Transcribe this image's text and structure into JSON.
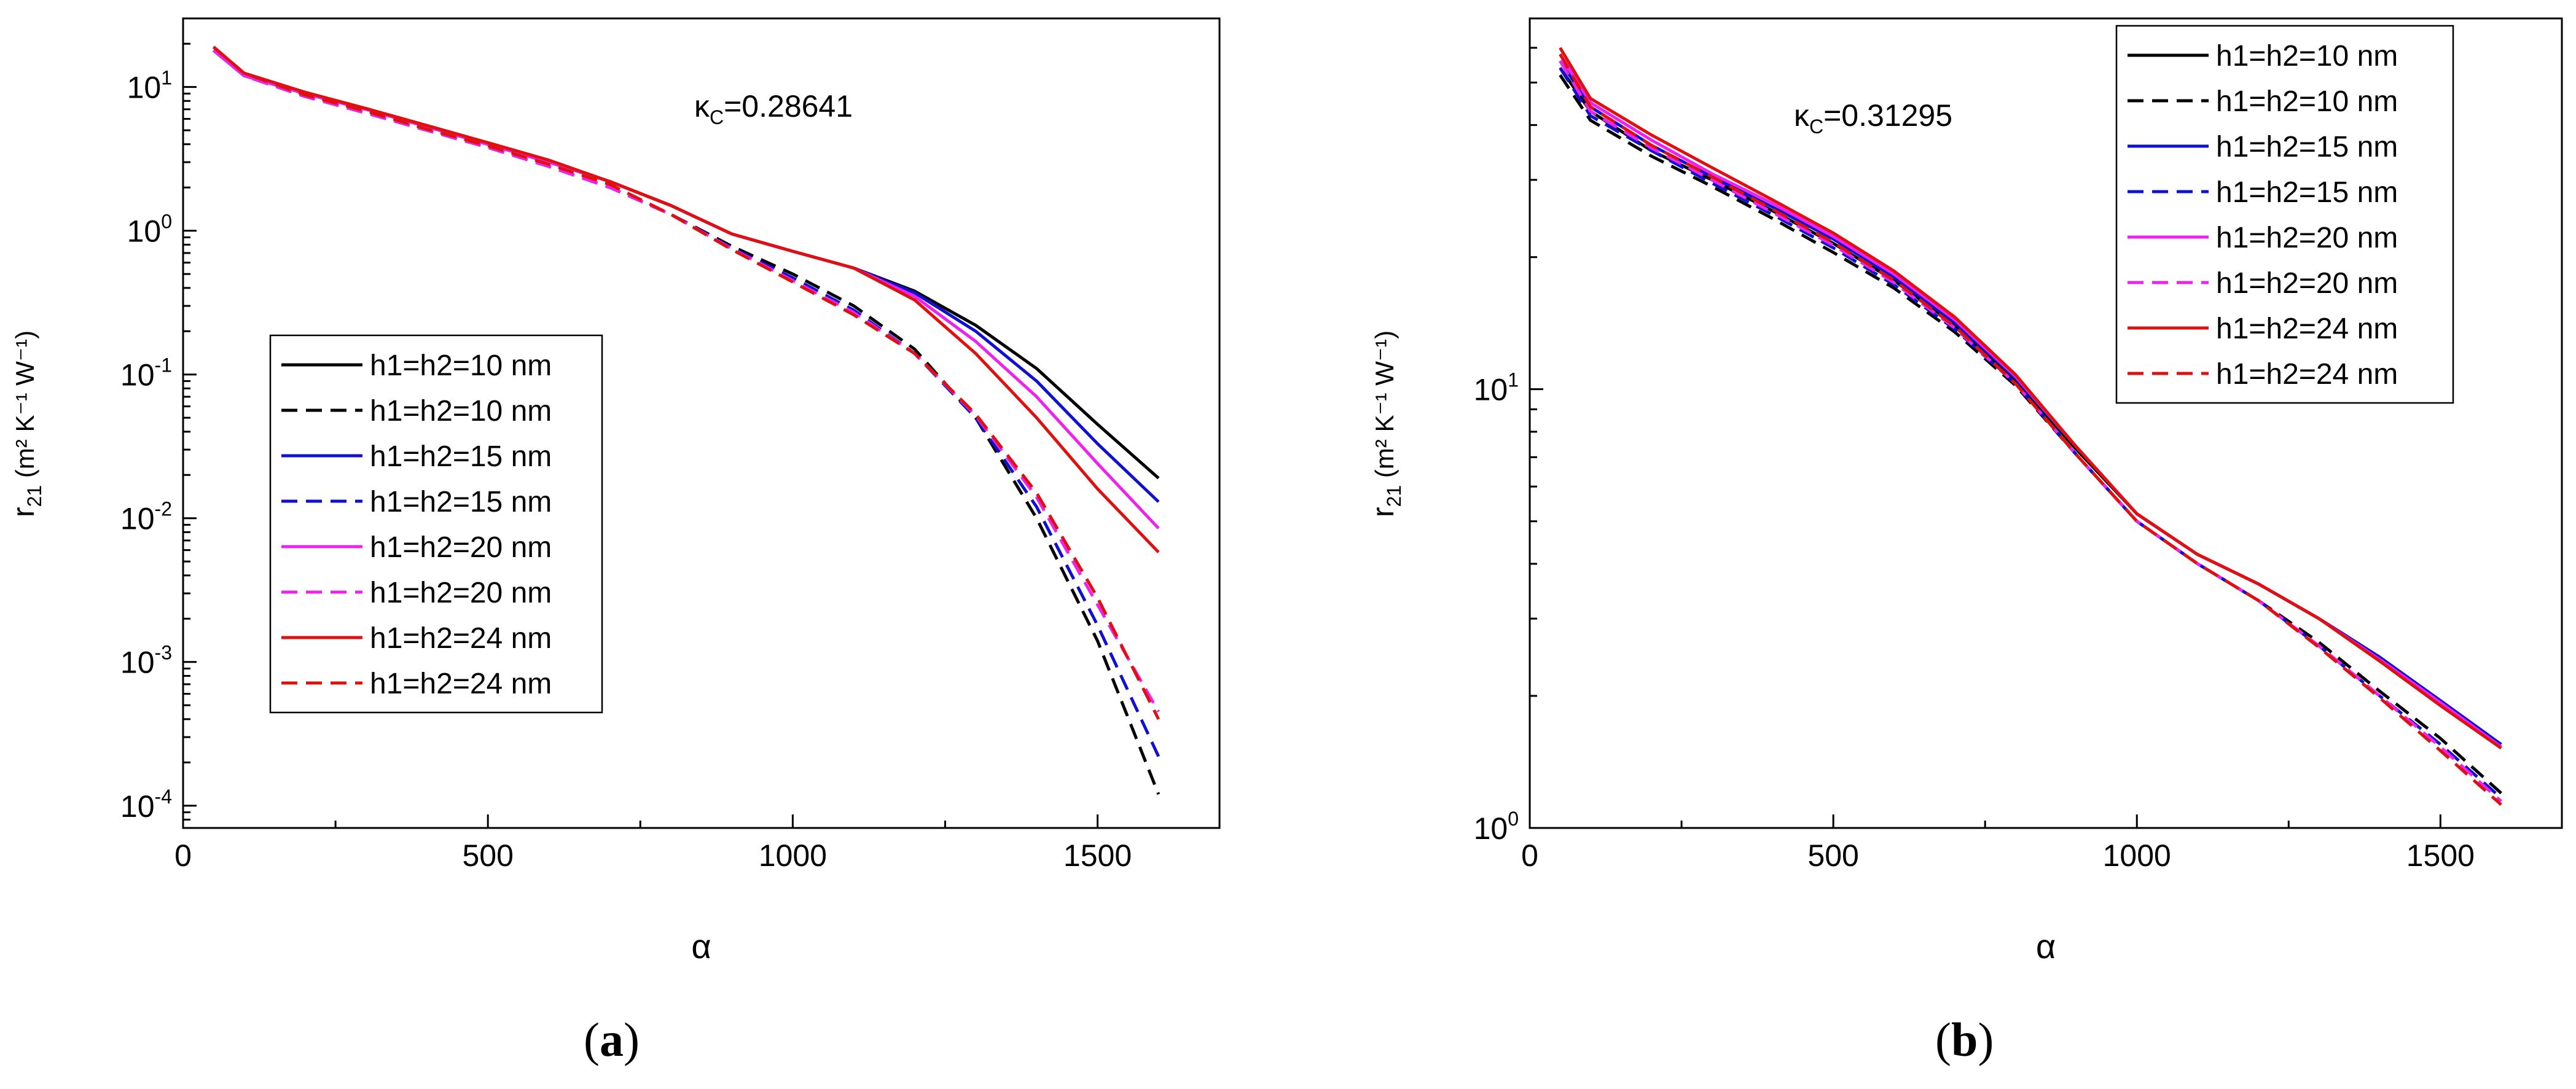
{
  "chart_data": [
    {
      "type": "line",
      "panel": "a",
      "caption_open": "(",
      "caption_letter": "a",
      "caption_close": ")",
      "annotation": "κ",
      "annotation_sub": "C",
      "annotation_value": "=0.28641",
      "xlabel": "α",
      "ylabel": "r",
      "ylabel_sub": "21",
      "ylabel_units": " (m² K⁻¹ W⁻¹)",
      "xscale": "linear",
      "yscale": "log",
      "xlim": [
        0,
        1700
      ],
      "ylim": [
        7e-05,
        30
      ],
      "xticks": [
        0,
        500,
        1000,
        1500
      ],
      "xtick_labels": [
        "0",
        "500",
        "1000",
        "1500"
      ],
      "yticks": [
        0.0001,
        0.001,
        0.01,
        0.1,
        1,
        10
      ],
      "ytick_labels": [
        [
          "10",
          "-4"
        ],
        [
          "10",
          "-3"
        ],
        [
          "10",
          "-2"
        ],
        [
          "10",
          "-1"
        ],
        [
          "10",
          "0"
        ],
        [
          "10",
          "1"
        ]
      ],
      "legend_position": "center-left",
      "x": [
        50,
        100,
        200,
        300,
        400,
        500,
        600,
        700,
        800,
        900,
        1000,
        1100,
        1200,
        1300,
        1400,
        1500,
        1600
      ],
      "series": [
        {
          "name": "h1=h2=10 nm",
          "color": "#000000",
          "dash": "solid",
          "values": [
            18,
            12,
            9,
            7,
            5.3,
            4.0,
            3.0,
            2.2,
            1.5,
            0.95,
            0.72,
            0.55,
            0.38,
            0.22,
            0.11,
            0.045,
            0.019
          ]
        },
        {
          "name": "h1=h2=10 nm",
          "color": "#000000",
          "dash": "dashed",
          "values": [
            18,
            12,
            8.6,
            6.6,
            5.0,
            3.8,
            2.8,
            2.0,
            1.3,
            0.78,
            0.5,
            0.3,
            0.15,
            0.05,
            0.01,
            0.0014,
            0.00012
          ]
        },
        {
          "name": "h1=h2=15 nm",
          "color": "#1010d0",
          "dash": "solid",
          "values": [
            18,
            12,
            9,
            7,
            5.3,
            4.0,
            3.0,
            2.2,
            1.5,
            0.95,
            0.72,
            0.55,
            0.37,
            0.2,
            0.09,
            0.033,
            0.013
          ]
        },
        {
          "name": "h1=h2=15 nm",
          "color": "#1010d0",
          "dash": "dashed",
          "values": [
            18,
            12,
            8.6,
            6.6,
            5.0,
            3.8,
            2.8,
            2.0,
            1.3,
            0.76,
            0.47,
            0.28,
            0.14,
            0.05,
            0.012,
            0.0018,
            0.00022
          ]
        },
        {
          "name": "h1=h2=20 nm",
          "color": "#ee22ee",
          "dash": "solid",
          "values": [
            18,
            12,
            9,
            7,
            5.3,
            4.0,
            3.0,
            2.2,
            1.5,
            0.95,
            0.72,
            0.55,
            0.35,
            0.17,
            0.07,
            0.024,
            0.0085
          ]
        },
        {
          "name": "h1=h2=20 nm",
          "color": "#ee22ee",
          "dash": "dashed",
          "values": [
            18,
            12,
            8.6,
            6.6,
            5.0,
            3.8,
            2.8,
            2.0,
            1.3,
            0.75,
            0.45,
            0.27,
            0.14,
            0.052,
            0.014,
            0.0025,
            0.00045
          ]
        },
        {
          "name": "h1=h2=24 nm",
          "color": "#e01010",
          "dash": "solid",
          "values": [
            19,
            12.5,
            9.2,
            7.1,
            5.4,
            4.1,
            3.1,
            2.2,
            1.5,
            0.95,
            0.72,
            0.55,
            0.33,
            0.14,
            0.05,
            0.016,
            0.0058
          ]
        },
        {
          "name": "h1=h2=24 nm",
          "color": "#e01010",
          "dash": "dashed",
          "values": [
            19,
            12.5,
            8.8,
            6.8,
            5.1,
            3.9,
            2.9,
            2.1,
            1.3,
            0.74,
            0.44,
            0.26,
            0.14,
            0.053,
            0.015,
            0.0028,
            0.0004
          ]
        }
      ]
    },
    {
      "type": "line",
      "panel": "b",
      "caption_open": "(",
      "caption_letter": "b",
      "caption_close": ")",
      "annotation": "κ",
      "annotation_sub": "C",
      "annotation_value": "=0.31295",
      "xlabel": "α",
      "ylabel": "r",
      "ylabel_sub": "21",
      "ylabel_units": " (m² K⁻¹ W⁻¹)",
      "xscale": "linear",
      "yscale": "log",
      "xlim": [
        0,
        1700
      ],
      "ylim": [
        1,
        70
      ],
      "xticks": [
        0,
        500,
        1000,
        1500
      ],
      "xtick_labels": [
        "0",
        "500",
        "1000",
        "1500"
      ],
      "yticks": [
        1,
        10
      ],
      "ytick_labels": [
        [
          "10",
          "0"
        ],
        [
          "10",
          "1"
        ]
      ],
      "legend_position": "top-right",
      "x": [
        50,
        100,
        200,
        300,
        400,
        500,
        600,
        700,
        800,
        900,
        1000,
        1100,
        1200,
        1300,
        1400,
        1500,
        1600
      ],
      "series": [
        {
          "name": "h1=h2=10 nm",
          "color": "#000000",
          "dash": "solid",
          "values": [
            54,
            43,
            35,
            30,
            25.5,
            21.5,
            17.7,
            14,
            10.5,
            7.3,
            5.2,
            4.2,
            3.6,
            3.0,
            2.45,
            1.95,
            1.55
          ]
        },
        {
          "name": "h1=h2=10 nm",
          "color": "#000000",
          "dash": "dashed",
          "values": [
            52,
            41,
            34,
            29,
            24.5,
            20.5,
            17,
            13.5,
            10.2,
            7.1,
            5.0,
            4.0,
            3.3,
            2.65,
            2.05,
            1.6,
            1.2
          ]
        },
        {
          "name": "h1=h2=15 nm",
          "color": "#1010d0",
          "dash": "solid",
          "values": [
            56,
            44,
            36,
            30.5,
            26,
            22,
            18,
            14.2,
            10.6,
            7.4,
            5.2,
            4.2,
            3.6,
            3.0,
            2.45,
            1.95,
            1.55
          ]
        },
        {
          "name": "h1=h2=15 nm",
          "color": "#1010d0",
          "dash": "dashed",
          "values": [
            54,
            42,
            35,
            29.5,
            25,
            21,
            17.3,
            13.7,
            10.3,
            7.1,
            5.0,
            4.0,
            3.3,
            2.6,
            2.0,
            1.55,
            1.17
          ]
        },
        {
          "name": "h1=h2=20 nm",
          "color": "#ee22ee",
          "dash": "solid",
          "values": [
            58,
            45,
            37,
            31,
            26.5,
            22.3,
            18.3,
            14.4,
            10.7,
            7.4,
            5.2,
            4.2,
            3.6,
            3.0,
            2.42,
            1.93,
            1.53
          ]
        },
        {
          "name": "h1=h2=20 nm",
          "color": "#ee22ee",
          "dash": "dashed",
          "values": [
            56,
            43,
            35.5,
            30,
            25.3,
            21.3,
            17.5,
            13.8,
            10.3,
            7.1,
            5.0,
            4.0,
            3.3,
            2.6,
            2.0,
            1.53,
            1.15
          ]
        },
        {
          "name": "h1=h2=24 nm",
          "color": "#e01010",
          "dash": "solid",
          "values": [
            60,
            46,
            38,
            32,
            27,
            22.7,
            18.6,
            14.6,
            10.8,
            7.4,
            5.2,
            4.2,
            3.6,
            3.0,
            2.4,
            1.9,
            1.52
          ]
        },
        {
          "name": "h1=h2=24 nm",
          "color": "#e01010",
          "dash": "dashed",
          "values": [
            58,
            44,
            36,
            30.5,
            25.7,
            21.6,
            17.7,
            13.9,
            10.3,
            7.1,
            5.0,
            4.0,
            3.3,
            2.58,
            1.98,
            1.5,
            1.13
          ]
        }
      ]
    }
  ]
}
